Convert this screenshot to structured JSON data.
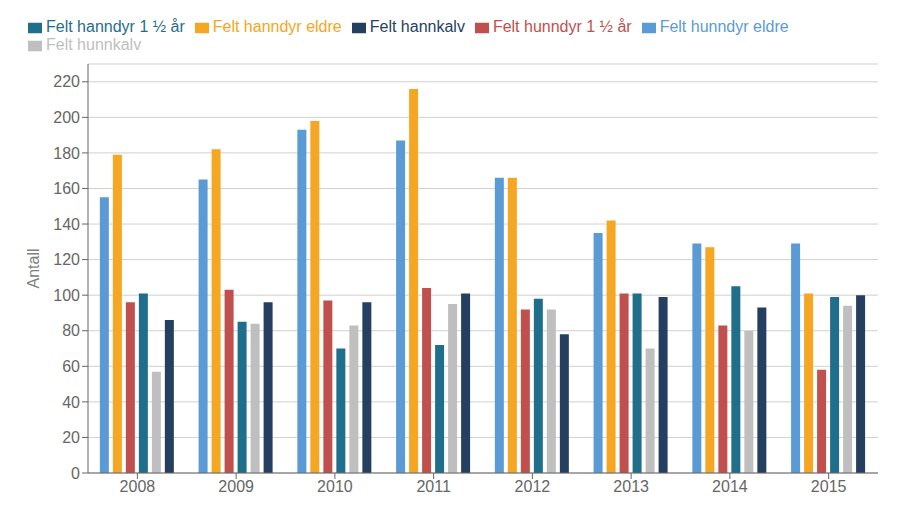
{
  "chart_data": {
    "type": "bar",
    "ylabel": "Antall",
    "categories": [
      "2008",
      "2009",
      "2010",
      "2011",
      "2012",
      "2013",
      "2014",
      "2015"
    ],
    "series": [
      {
        "name": "Felt hunndyr eldre",
        "color": "#5B9BD5",
        "values": [
          155,
          165,
          193,
          187,
          166,
          135,
          129,
          129
        ]
      },
      {
        "name": "Felt hanndyr eldre",
        "color": "#F5A623",
        "values": [
          179,
          182,
          198,
          216,
          166,
          142,
          127,
          101
        ]
      },
      {
        "name": "Felt hunndyr 1 ½ år",
        "color": "#C0504D",
        "values": [
          96,
          103,
          97,
          104,
          92,
          101,
          83,
          58
        ]
      },
      {
        "name": "Felt hanndyr 1 ½ år",
        "color": "#1F6E8C",
        "values": [
          101,
          85,
          70,
          72,
          98,
          101,
          105,
          99
        ]
      },
      {
        "name": "Felt hunnkalv",
        "color": "#BFBFBF",
        "values": [
          57,
          84,
          83,
          95,
          92,
          70,
          80,
          94
        ]
      },
      {
        "name": "Felt hannkalv",
        "color": "#243F60",
        "values": [
          86,
          96,
          96,
          101,
          78,
          99,
          93,
          100
        ]
      }
    ],
    "ylim": [
      0,
      230
    ],
    "yticks": [
      0,
      20,
      40,
      60,
      80,
      100,
      120,
      140,
      160,
      180,
      200,
      220
    ],
    "grid": true,
    "legend": "top"
  }
}
